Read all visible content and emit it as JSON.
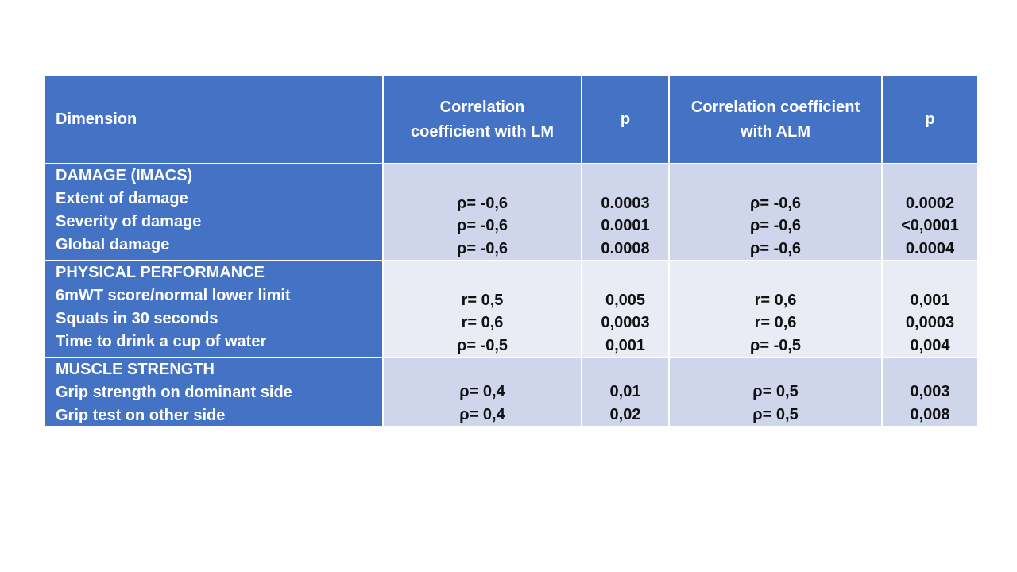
{
  "table": {
    "header": [
      "Dimension",
      "Correlation coefficient with LM",
      "p",
      "Correlation coefficient with ALM",
      "p"
    ],
    "rows": [
      {
        "group": "DAMAGE (IMACS)",
        "items": [
          "Extent of damage",
          "Severity of damage",
          "Global damage"
        ],
        "lm": [
          "ρ= -0,6",
          "ρ= -0,6",
          "ρ= -0,6"
        ],
        "p_lm": [
          "0.0003",
          "0.0001",
          "0.0008"
        ],
        "alm": [
          "ρ= -0,6",
          "ρ= -0,6",
          "ρ= -0,6"
        ],
        "p_alm": [
          "0.0002",
          "<0,0001",
          "0.0004"
        ]
      },
      {
        "group": "PHYSICAL PERFORMANCE",
        "items": [
          "6mWT score/normal lower limit",
          "Squats in 30 seconds",
          "Time to drink a cup of water"
        ],
        "lm": [
          "r= 0,5",
          "r= 0,6",
          "ρ= -0,5"
        ],
        "p_lm": [
          "0,005",
          "0,0003",
          "0,001"
        ],
        "alm": [
          "r= 0,6",
          "r= 0,6",
          "ρ= -0,5"
        ],
        "p_alm": [
          "0,001",
          "0,0003",
          "0,004"
        ]
      },
      {
        "group": "MUSCLE STRENGTH",
        "items": [
          "Grip strength on dominant side",
          "Grip test on other side"
        ],
        "lm": [
          "ρ= 0,4",
          "ρ= 0,4"
        ],
        "p_lm": [
          "0,01",
          "0,02"
        ],
        "alm": [
          "ρ= 0,5",
          "ρ= 0,5"
        ],
        "p_alm": [
          "0,003",
          "0,008"
        ]
      }
    ]
  }
}
